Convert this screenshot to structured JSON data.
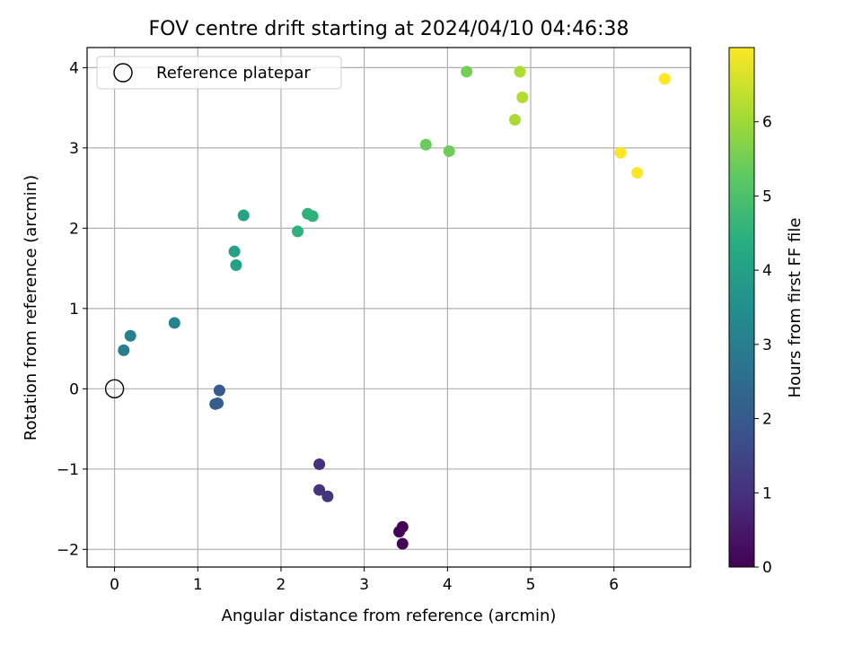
{
  "chart_data": {
    "type": "scatter",
    "title": "FOV centre drift starting at 2024/04/10 04:46:38",
    "xlabel": "Angular distance from reference (arcmin)",
    "ylabel": "Rotation from reference (arcmin)",
    "xlim": [
      -0.33,
      6.92
    ],
    "ylim": [
      -2.22,
      4.25
    ],
    "xticks": [
      0,
      1,
      2,
      3,
      4,
      5,
      6
    ],
    "yticks": [
      -2,
      -1,
      0,
      1,
      2,
      3,
      4
    ],
    "ytick_labels": [
      "−2",
      "−1",
      "0",
      "1",
      "2",
      "3",
      "4"
    ],
    "grid": true,
    "legend": {
      "placement": "top-left",
      "entries": [
        "Reference platepar"
      ]
    },
    "reference_point": {
      "x": 0,
      "y": 0
    },
    "colorbar": {
      "label": "Hours from first FF file",
      "range": [
        0,
        7
      ],
      "ticks": [
        0,
        1,
        2,
        3,
        4,
        5,
        6
      ],
      "colormap": "viridis"
    },
    "points": [
      {
        "x": 3.46,
        "y": -1.72,
        "hours": 0.0
      },
      {
        "x": 3.42,
        "y": -1.78,
        "hours": 0.05
      },
      {
        "x": 3.46,
        "y": -1.93,
        "hours": 0.1
      },
      {
        "x": 2.46,
        "y": -0.94,
        "hours": 1.0
      },
      {
        "x": 2.46,
        "y": -1.26,
        "hours": 1.05
      },
      {
        "x": 2.56,
        "y": -1.34,
        "hours": 1.1
      },
      {
        "x": 1.26,
        "y": -0.02,
        "hours": 2.0
      },
      {
        "x": 1.21,
        "y": -0.19,
        "hours": 2.05
      },
      {
        "x": 1.24,
        "y": -0.18,
        "hours": 2.1
      },
      {
        "x": 0.11,
        "y": 0.48,
        "hours": 3.0
      },
      {
        "x": 0.19,
        "y": 0.66,
        "hours": 3.05
      },
      {
        "x": 0.72,
        "y": 0.82,
        "hours": 3.1
      },
      {
        "x": 1.44,
        "y": 1.71,
        "hours": 4.0
      },
      {
        "x": 1.46,
        "y": 1.54,
        "hours": 4.0
      },
      {
        "x": 1.55,
        "y": 2.16,
        "hours": 4.05
      },
      {
        "x": 2.2,
        "y": 1.96,
        "hours": 4.5
      },
      {
        "x": 2.32,
        "y": 2.18,
        "hours": 4.5
      },
      {
        "x": 2.38,
        "y": 2.15,
        "hours": 4.55
      },
      {
        "x": 3.74,
        "y": 3.04,
        "hours": 5.4
      },
      {
        "x": 4.02,
        "y": 2.96,
        "hours": 5.45
      },
      {
        "x": 4.23,
        "y": 3.95,
        "hours": 5.5
      },
      {
        "x": 4.81,
        "y": 3.35,
        "hours": 6.1
      },
      {
        "x": 4.87,
        "y": 3.95,
        "hours": 6.15
      },
      {
        "x": 4.9,
        "y": 3.63,
        "hours": 6.2
      },
      {
        "x": 6.08,
        "y": 2.94,
        "hours": 7.0
      },
      {
        "x": 6.28,
        "y": 2.69,
        "hours": 7.0
      },
      {
        "x": 6.61,
        "y": 3.86,
        "hours": 7.0
      }
    ]
  }
}
